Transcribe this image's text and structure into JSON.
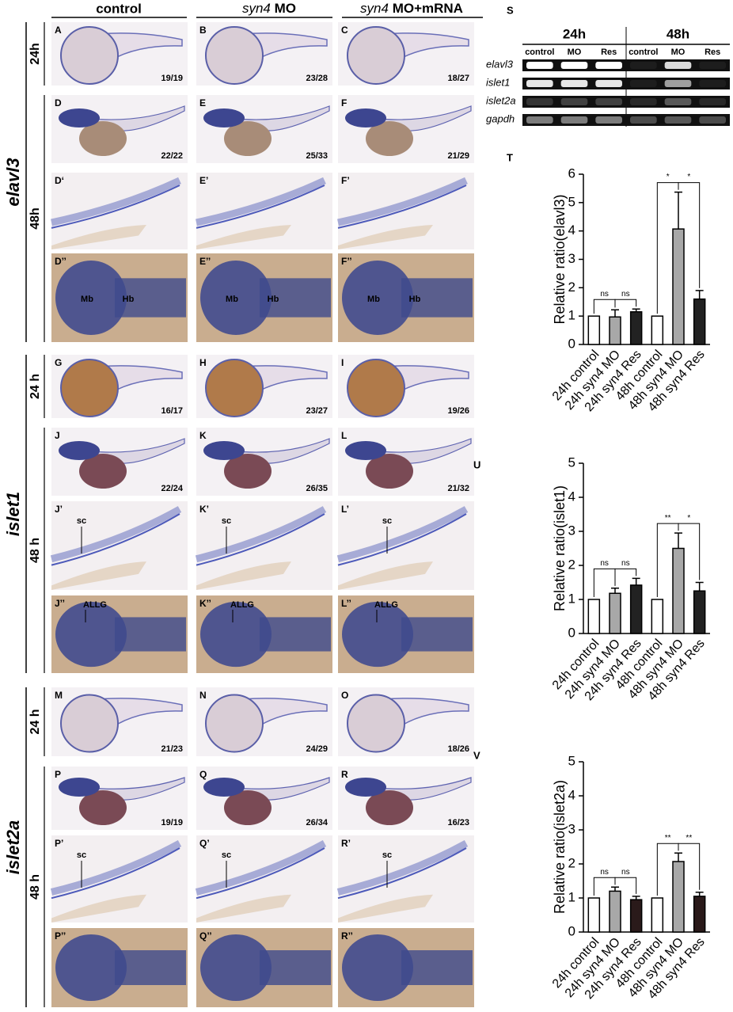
{
  "column_headers": [
    {
      "text": "control"
    },
    {
      "italic": "syn4",
      "text": "MO"
    },
    {
      "italic": "syn4",
      "text": "MO+mRNA"
    }
  ],
  "genes": [
    {
      "name": "elavl3",
      "stages": [
        "24h",
        "48h"
      ]
    },
    {
      "name": "islet1",
      "stages": [
        "24 h",
        "48 h"
      ]
    },
    {
      "name": "islet2a",
      "stages": [
        "24 h",
        "48 h"
      ]
    }
  ],
  "panel_rows": [
    {
      "panels": [
        {
          "label": "A",
          "count": "19/19"
        },
        {
          "label": "B",
          "count": "23/28"
        },
        {
          "label": "C",
          "count": "18/27"
        }
      ]
    },
    {
      "panels": [
        {
          "label": "D",
          "count": "22/22"
        },
        {
          "label": "E",
          "count": "25/33"
        },
        {
          "label": "F",
          "count": "21/29"
        }
      ]
    },
    {
      "panels": [
        {
          "label": "D‘"
        },
        {
          "label": "E’"
        },
        {
          "label": "F’"
        }
      ]
    },
    {
      "panels": [
        {
          "label": "D’’",
          "annotations": [
            "Mb",
            "Hb"
          ]
        },
        {
          "label": "E’’",
          "annotations": [
            "Mb",
            "Hb"
          ]
        },
        {
          "label": "F’’",
          "annotations": [
            "Mb",
            "Hb"
          ]
        }
      ]
    },
    {
      "panels": [
        {
          "label": "G",
          "count": "16/17"
        },
        {
          "label": "H",
          "count": "23/27"
        },
        {
          "label": "I",
          "count": "19/26"
        }
      ]
    },
    {
      "panels": [
        {
          "label": "J",
          "count": "22/24"
        },
        {
          "label": "K",
          "count": "26/35"
        },
        {
          "label": "L",
          "count": "21/32"
        }
      ]
    },
    {
      "panels": [
        {
          "label": "J’",
          "annotations": [
            "sc"
          ]
        },
        {
          "label": "K’",
          "annotations": [
            "sc"
          ]
        },
        {
          "label": "L’",
          "annotations": [
            "sc"
          ]
        }
      ]
    },
    {
      "panels": [
        {
          "label": "J’’",
          "annotations": [
            "ALLG"
          ]
        },
        {
          "label": "K’’",
          "annotations": [
            "ALLG"
          ]
        },
        {
          "label": "L’’",
          "annotations": [
            "ALLG"
          ]
        }
      ]
    },
    {
      "panels": [
        {
          "label": "M",
          "count": "21/23"
        },
        {
          "label": "N",
          "count": "24/29"
        },
        {
          "label": "O",
          "count": "18/26"
        }
      ]
    },
    {
      "panels": [
        {
          "label": "P",
          "count": "19/19"
        },
        {
          "label": "Q",
          "count": "26/34"
        },
        {
          "label": "R",
          "count": "16/23"
        }
      ]
    },
    {
      "panels": [
        {
          "label": "P’",
          "annotations": [
            "sc"
          ]
        },
        {
          "label": "Q’",
          "annotations": [
            "sc"
          ]
        },
        {
          "label": "R’",
          "annotations": [
            "sc"
          ]
        }
      ]
    },
    {
      "panels": [
        {
          "label": "P’’"
        },
        {
          "label": "Q’’"
        },
        {
          "label": "R’’"
        }
      ]
    }
  ],
  "gel": {
    "label": "S",
    "stages": [
      "24h",
      "48h"
    ],
    "lanes": [
      "control",
      "MO",
      "Res",
      "control",
      "MO",
      "Res"
    ],
    "genes": [
      "elavl3",
      "islet1",
      "islet2a",
      "gapdh"
    ]
  },
  "chart_data": [
    {
      "type": "bar",
      "label": "T",
      "ylabel": "Relative ratio(elavl3)",
      "categories": [
        "24h control",
        "24h syn4 MO",
        "24h syn4 Res",
        "48h control",
        "48h syn4 MO",
        "48h syn4 Res"
      ],
      "values": [
        1,
        0.97,
        1.15,
        1,
        4.07,
        1.6
      ],
      "errors": [
        null,
        0.25,
        0.1,
        null,
        1.3,
        0.3
      ],
      "colors": [
        "#ffffff",
        "#a8a8a8",
        "#222222",
        "#ffffff",
        "#a8a8a8",
        "#222222"
      ],
      "ylim": [
        0,
        6
      ],
      "yticks": [
        0,
        1,
        2,
        3,
        4,
        5,
        6
      ],
      "significance": [
        "ns",
        "ns",
        "*",
        "*"
      ]
    },
    {
      "type": "bar",
      "label": "U",
      "ylabel": "Relative ratio(islet1)",
      "categories": [
        "24h control",
        "24h syn4 MO",
        "24h syn4 Res",
        "48h control",
        "48h syn4 MO",
        "48h syn4 Res"
      ],
      "values": [
        1,
        1.18,
        1.42,
        1,
        2.5,
        1.25
      ],
      "errors": [
        null,
        0.15,
        0.2,
        null,
        0.45,
        0.25
      ],
      "colors": [
        "#ffffff",
        "#a8a8a8",
        "#222222",
        "#ffffff",
        "#a8a8a8",
        "#222222"
      ],
      "ylim": [
        0,
        5
      ],
      "yticks": [
        0,
        1,
        2,
        3,
        4,
        5
      ],
      "significance": [
        "ns",
        "ns",
        "**",
        "*"
      ]
    },
    {
      "type": "bar",
      "label": "V",
      "ylabel": "Relative ratio(islet2a)",
      "categories": [
        "24h control",
        "24h syn4 MO",
        "24h syn4 Res",
        "48h control",
        "48h syn4 MO",
        "48h syn4 Res"
      ],
      "values": [
        1,
        1.2,
        0.95,
        1,
        2.07,
        1.05
      ],
      "errors": [
        null,
        0.12,
        0.1,
        null,
        0.25,
        0.12
      ],
      "colors": [
        "#ffffff",
        "#a8a8a8",
        "#2a1a1a",
        "#ffffff",
        "#a8a8a8",
        "#2a1a1a"
      ],
      "ylim": [
        0,
        5
      ],
      "yticks": [
        0,
        1,
        2,
        3,
        4,
        5
      ],
      "significance": [
        "ns",
        "ns",
        "**",
        "**"
      ]
    }
  ]
}
